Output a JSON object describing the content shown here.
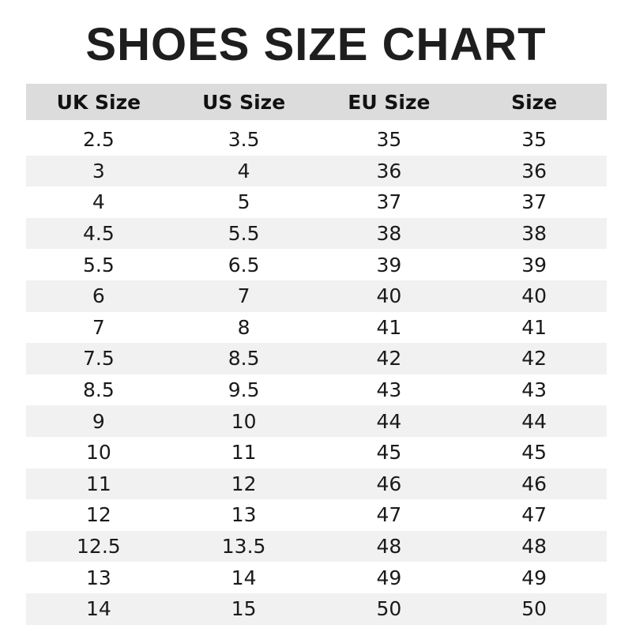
{
  "title": "SHOES SIZE CHART",
  "table": {
    "headers": [
      "UK Size",
      "US Size",
      "EU Size",
      "Size"
    ],
    "rows": [
      [
        "2.5",
        "3.5",
        "35",
        "35"
      ],
      [
        "3",
        "4",
        "36",
        "36"
      ],
      [
        "4",
        "5",
        "37",
        "37"
      ],
      [
        "4.5",
        "5.5",
        "38",
        "38"
      ],
      [
        "5.5",
        "6.5",
        "39",
        "39"
      ],
      [
        "6",
        "7",
        "40",
        "40"
      ],
      [
        "7",
        "8",
        "41",
        "41"
      ],
      [
        "7.5",
        "8.5",
        "42",
        "42"
      ],
      [
        "8.5",
        "9.5",
        "43",
        "43"
      ],
      [
        "9",
        "10",
        "44",
        "44"
      ],
      [
        "10",
        "11",
        "45",
        "45"
      ],
      [
        "11",
        "12",
        "46",
        "46"
      ],
      [
        "12",
        "13",
        "47",
        "47"
      ],
      [
        "12.5",
        "13.5",
        "48",
        "48"
      ],
      [
        "13",
        "14",
        "49",
        "49"
      ],
      [
        "14",
        "15",
        "50",
        "50"
      ]
    ]
  },
  "colors": {
    "header_bg": "#dcdcdc",
    "stripe_bg": "#f1f1f1",
    "text": "#1a1a1a"
  }
}
